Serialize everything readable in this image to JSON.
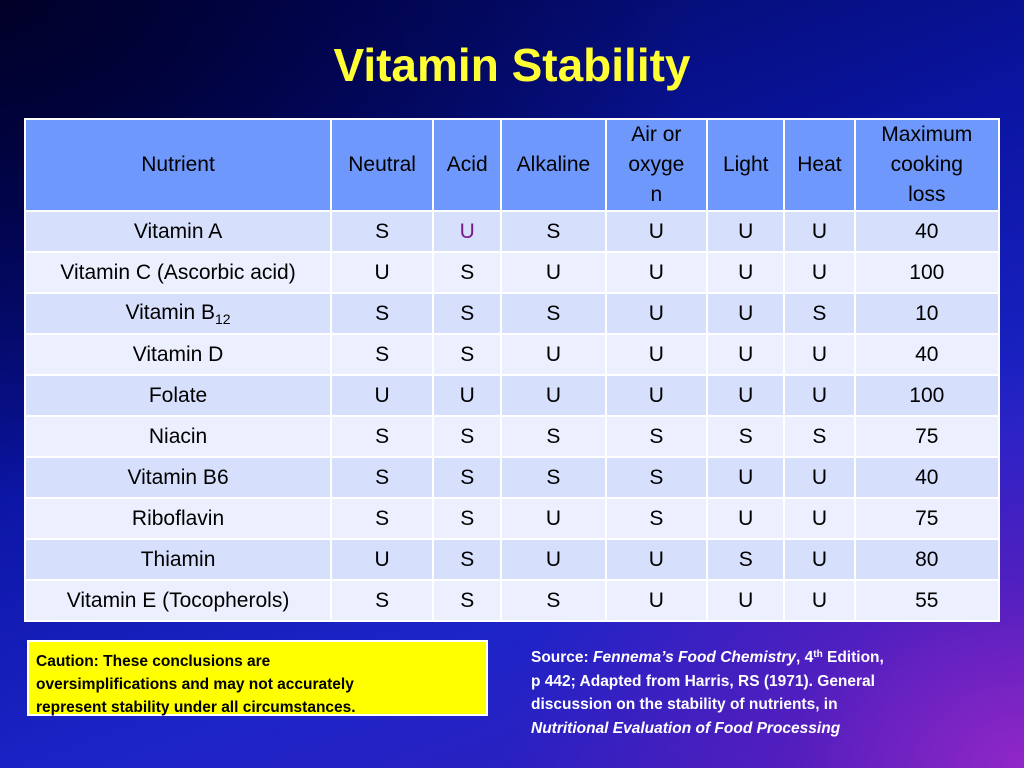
{
  "title": "Vitamin Stability",
  "table": {
    "headers": {
      "nutrient": "Nutrient",
      "neutral": "Neutral",
      "acid": "Acid",
      "alkaline": "Alkaline",
      "air_line1": "Air or",
      "air_line2": "oxyge",
      "air_line3": "n",
      "light": "Light",
      "heat": "Heat",
      "max_line1": "Maximum",
      "max_line2": "cooking",
      "max_line3": "loss"
    },
    "rows": [
      {
        "nutrient": "Vitamin A",
        "neutral": "S",
        "acid": "U",
        "alkaline": "S",
        "air": "U",
        "light": "U",
        "heat": "U",
        "max_loss": "40"
      },
      {
        "nutrient": "Vitamin C (Ascorbic acid)",
        "neutral": "U",
        "acid": "S",
        "alkaline": "U",
        "air": "U",
        "light": "U",
        "heat": "U",
        "max_loss": "100"
      },
      {
        "nutrient": "Vitamin B",
        "nutrient_sub": "12",
        "neutral": "S",
        "acid": "S",
        "alkaline": "S",
        "air": "U",
        "light": "U",
        "heat": "S",
        "max_loss": "10"
      },
      {
        "nutrient": "Vitamin D",
        "neutral": "S",
        "acid": "S",
        "alkaline": "U",
        "air": "U",
        "light": "U",
        "heat": "U",
        "max_loss": "40"
      },
      {
        "nutrient": "Folate",
        "neutral": "U",
        "acid": "U",
        "alkaline": "U",
        "air": "U",
        "light": "U",
        "heat": "U",
        "max_loss": "100"
      },
      {
        "nutrient": "Niacin",
        "neutral": "S",
        "acid": "S",
        "alkaline": "S",
        "air": "S",
        "light": "S",
        "heat": "S",
        "max_loss": "75"
      },
      {
        "nutrient": "Vitamin B6",
        "neutral": "S",
        "acid": "S",
        "alkaline": "S",
        "air": "S",
        "light": "U",
        "heat": "U",
        "max_loss": "40"
      },
      {
        "nutrient": "Riboflavin",
        "neutral": "S",
        "acid": "S",
        "alkaline": "U",
        "air": "S",
        "light": "U",
        "heat": "U",
        "max_loss": "75"
      },
      {
        "nutrient": "Thiamin",
        "neutral": "U",
        "acid": "S",
        "alkaline": "U",
        "air": "U",
        "light": "S",
        "heat": "U",
        "max_loss": "80"
      },
      {
        "nutrient": "Vitamin E (Tocopherols)",
        "neutral": "S",
        "acid": "S",
        "alkaline": "S",
        "air": "U",
        "light": "U",
        "heat": "U",
        "max_loss": "55"
      }
    ]
  },
  "caution": {
    "line1": "Caution:  These conclusions are",
    "line2": "oversimplifications and may not accurately",
    "line3": "represent stability under all circumstances."
  },
  "source": {
    "prefix": "Source: ",
    "book": "Fennema’s Food Chemistry",
    "comma": ", 4",
    "ordinal": "th",
    "edition": " Edition,",
    "line2": "p 442; Adapted from Harris, RS (1971).  General",
    "line3": "discussion on the stability of nutrients, in",
    "line4": "Nutritional Evaluation of Food Processing"
  },
  "colors": {
    "title": "#ffff33",
    "header_bg": "#6f98fc",
    "row_odd": "#d6dffc",
    "row_even": "#eceffd",
    "caution_bg": "#ffff00",
    "vitamin_a_acid": "#7a1a8c"
  }
}
